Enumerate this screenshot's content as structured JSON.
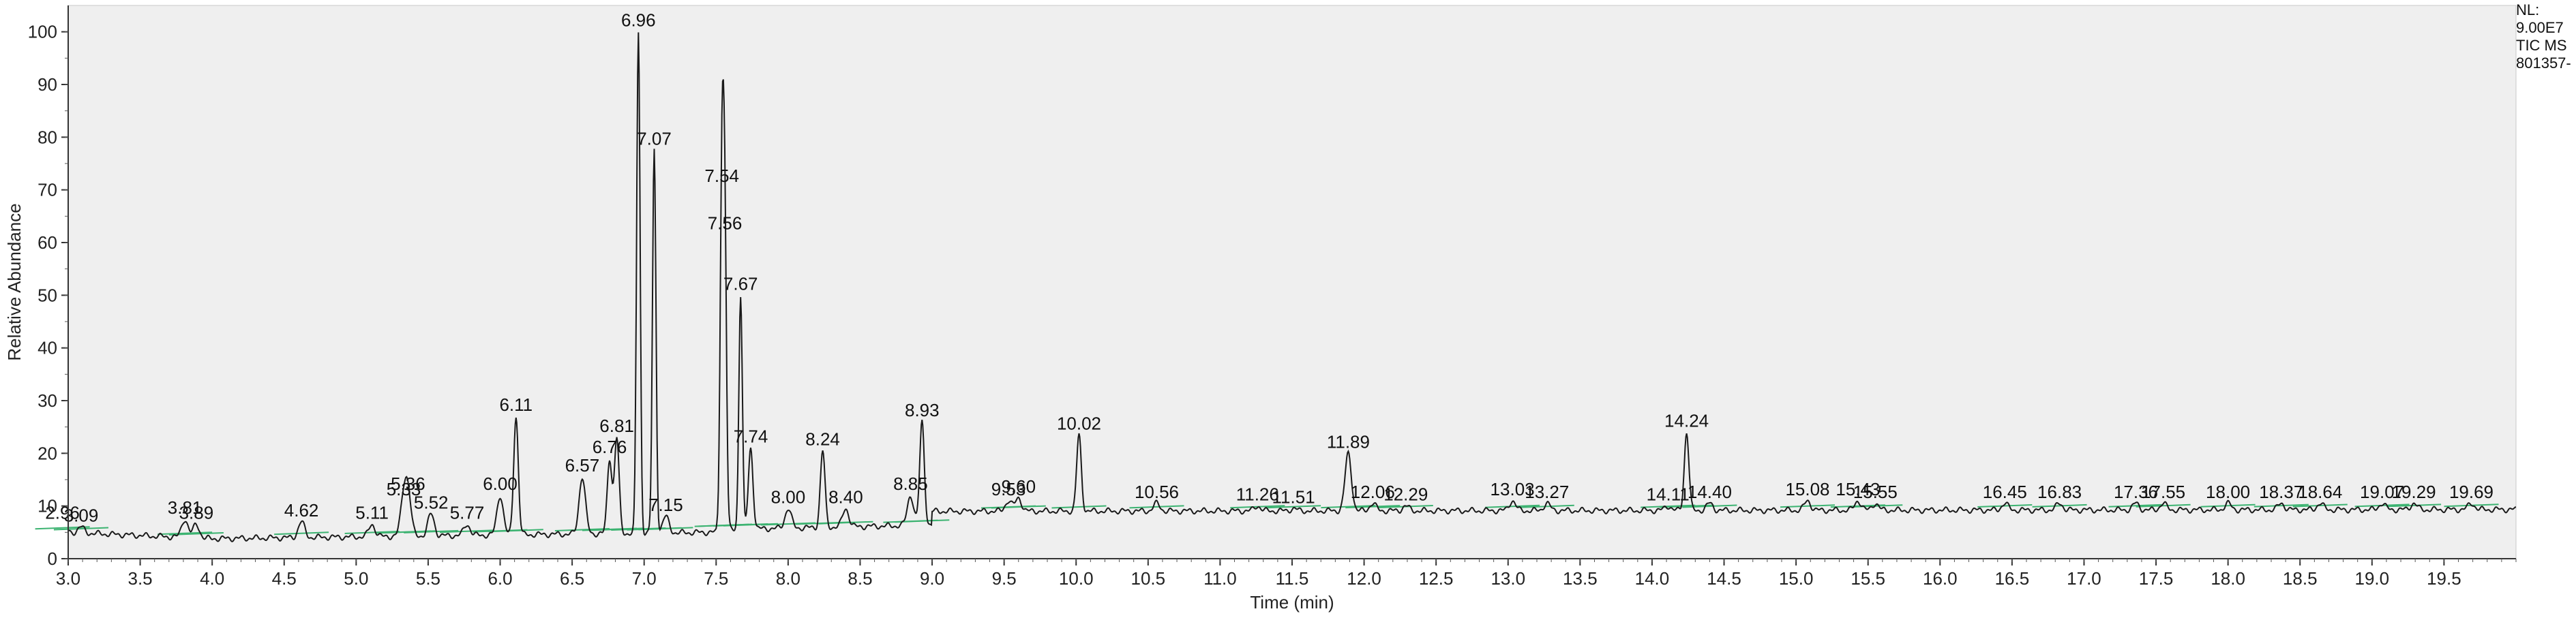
{
  "header": {
    "nl_label": "NL:",
    "nl_value": "9.00E7",
    "trace": "TIC  MS",
    "sample": "801357-"
  },
  "chart_data": {
    "type": "line",
    "xlabel": "Time (min)",
    "ylabel": "Relative Abundance",
    "xlim": [
      3.0,
      20.0
    ],
    "ylim": [
      0,
      105
    ],
    "x_ticks": [
      "3.0",
      "3.5",
      "4.0",
      "4.5",
      "5.0",
      "5.5",
      "6.0",
      "6.5",
      "7.0",
      "7.5",
      "8.0",
      "8.5",
      "9.0",
      "9.5",
      "10.0",
      "10.5",
      "11.0",
      "11.5",
      "12.0",
      "12.5",
      "13.0",
      "13.5",
      "14.0",
      "14.5",
      "15.0",
      "15.5",
      "16.0",
      "16.5",
      "17.0",
      "17.5",
      "18.0",
      "18.5",
      "19.0",
      "19.5"
    ],
    "y_ticks": [
      "0",
      "10",
      "20",
      "30",
      "40",
      "50",
      "60",
      "70",
      "80",
      "90",
      "100"
    ],
    "colors": {
      "trace": "#1a1a1a",
      "baseline_marks": "#3cb371",
      "plot_bg": "#efefef"
    },
    "series": [
      {
        "peaks": [
          {
            "x": 2.96,
            "y": 6.5,
            "label": "2.96"
          },
          {
            "x": 3.09,
            "y": 6.0,
            "label": "3.09"
          },
          {
            "x": 3.81,
            "y": 7.5,
            "label": "3.81"
          },
          {
            "x": 3.89,
            "y": 6.5,
            "label": "3.89"
          },
          {
            "x": 4.62,
            "y": 7.0,
            "label": "4.62"
          },
          {
            "x": 5.11,
            "y": 6.5,
            "label": "5.11"
          },
          {
            "x": 5.33,
            "y": 11.0,
            "label": "5.33"
          },
          {
            "x": 5.36,
            "y": 12.0,
            "label": "5.36"
          },
          {
            "x": 5.52,
            "y": 8.5,
            "label": "5.52"
          },
          {
            "x": 5.77,
            "y": 6.5,
            "label": "5.77"
          },
          {
            "x": 6.0,
            "y": 12.0,
            "label": "6.00"
          },
          {
            "x": 6.11,
            "y": 27.0,
            "label": "6.11"
          },
          {
            "x": 6.57,
            "y": 15.5,
            "label": "6.57"
          },
          {
            "x": 6.76,
            "y": 19.0,
            "label": "6.76"
          },
          {
            "x": 6.81,
            "y": 23.0,
            "label": "6.81"
          },
          {
            "x": 6.96,
            "y": 100.0,
            "label": "6.96"
          },
          {
            "x": 7.07,
            "y": 77.5,
            "label": "7.07"
          },
          {
            "x": 7.15,
            "y": 8.0,
            "label": "7.15"
          },
          {
            "x": 7.54,
            "y": 70.5,
            "label": "7.54"
          },
          {
            "x": 7.56,
            "y": 61.5,
            "label": "7.56"
          },
          {
            "x": 7.67,
            "y": 50.0,
            "label": "7.67"
          },
          {
            "x": 7.74,
            "y": 21.0,
            "label": "7.74"
          },
          {
            "x": 8.0,
            "y": 9.5,
            "label": "8.00"
          },
          {
            "x": 8.24,
            "y": 20.5,
            "label": "8.24"
          },
          {
            "x": 8.4,
            "y": 9.5,
            "label": "8.40"
          },
          {
            "x": 8.85,
            "y": 12.0,
            "label": "8.85"
          },
          {
            "x": 8.93,
            "y": 26.0,
            "label": "8.93"
          },
          {
            "x": 9.53,
            "y": 11.0,
            "label": "9.53"
          },
          {
            "x": 9.6,
            "y": 11.5,
            "label": "9.60"
          },
          {
            "x": 10.02,
            "y": 23.5,
            "label": "10.02"
          },
          {
            "x": 10.56,
            "y": 10.5,
            "label": "10.56"
          },
          {
            "x": 11.26,
            "y": 10.0,
            "label": "11.26"
          },
          {
            "x": 11.51,
            "y": 9.5,
            "label": "11.51"
          },
          {
            "x": 11.89,
            "y": 20.0,
            "label": "11.89"
          },
          {
            "x": 12.06,
            "y": 10.5,
            "label": "12.06"
          },
          {
            "x": 12.29,
            "y": 10.0,
            "label": "12.29"
          },
          {
            "x": 13.03,
            "y": 11.0,
            "label": "13.03"
          },
          {
            "x": 13.27,
            "y": 10.5,
            "label": "13.27"
          },
          {
            "x": 14.11,
            "y": 10.0,
            "label": "14.11"
          },
          {
            "x": 14.24,
            "y": 24.0,
            "label": "14.24"
          },
          {
            "x": 14.4,
            "y": 10.5,
            "label": "14.40"
          },
          {
            "x": 15.08,
            "y": 11.0,
            "label": "15.08"
          },
          {
            "x": 15.43,
            "y": 11.0,
            "label": "15.43"
          },
          {
            "x": 15.55,
            "y": 10.5,
            "label": "15.55"
          },
          {
            "x": 16.45,
            "y": 10.5,
            "label": "16.45"
          },
          {
            "x": 16.83,
            "y": 10.5,
            "label": "16.83"
          },
          {
            "x": 17.36,
            "y": 10.5,
            "label": "17.36"
          },
          {
            "x": 17.55,
            "y": 10.5,
            "label": "17.55"
          },
          {
            "x": 18.0,
            "y": 10.5,
            "label": "18.00"
          },
          {
            "x": 18.37,
            "y": 10.5,
            "label": "18.37"
          },
          {
            "x": 18.64,
            "y": 10.5,
            "label": "18.64"
          },
          {
            "x": 19.07,
            "y": 10.5,
            "label": "19.07"
          },
          {
            "x": 19.29,
            "y": 10.5,
            "label": "19.29"
          },
          {
            "x": 19.69,
            "y": 10.5,
            "label": "19.69"
          }
        ]
      }
    ]
  }
}
